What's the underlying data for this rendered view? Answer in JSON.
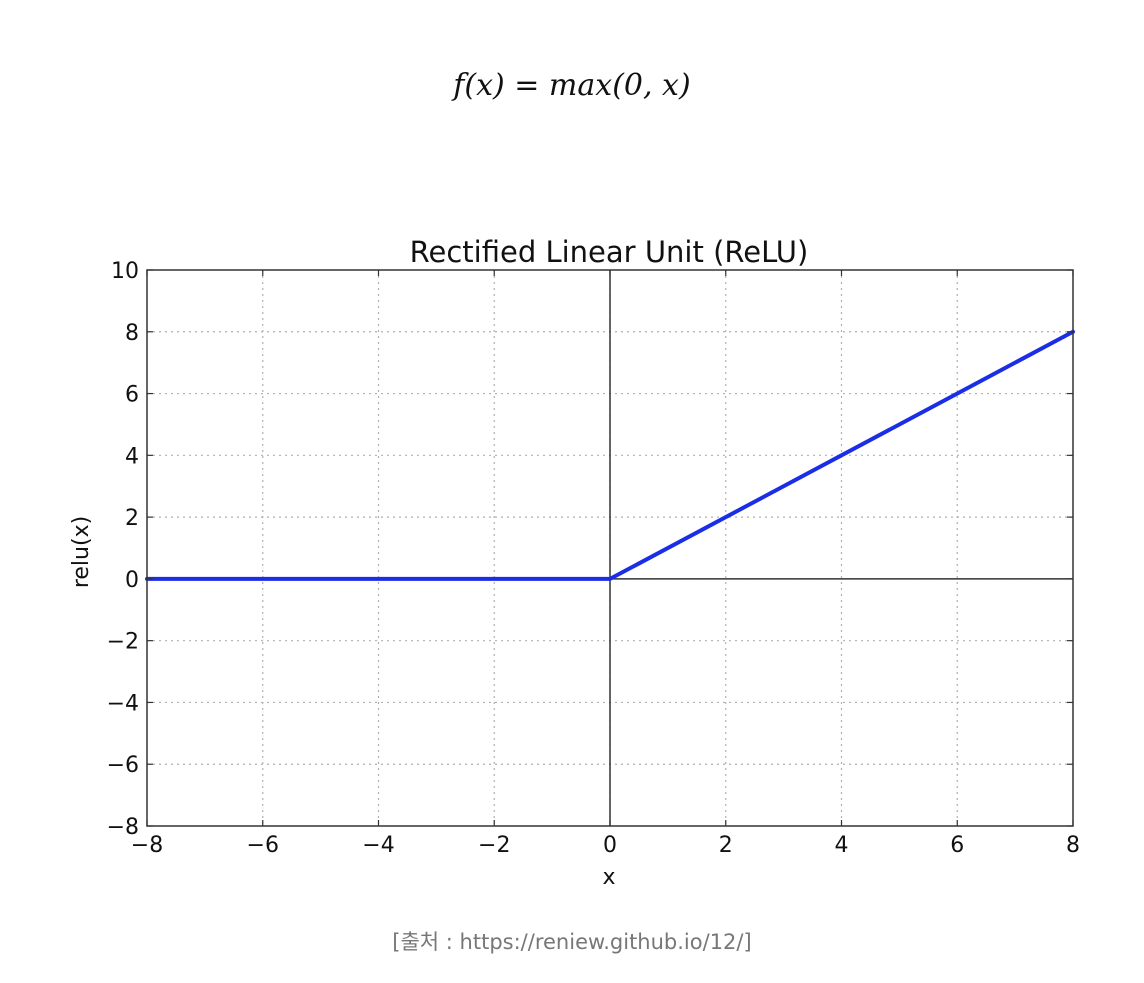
{
  "formula": "f(x) = max(0, x)",
  "caption": "[출처 : https://reniew.github.io/12/]",
  "colors": {
    "line": "#1a2ee6",
    "axes": "#333333",
    "grid": "#b0b0b0"
  },
  "chart_data": {
    "type": "line",
    "title": "Rectified Linear Unit (ReLU)",
    "xlabel": "x",
    "ylabel": "relu(x)",
    "xlim": [
      -8,
      8
    ],
    "ylim": [
      -8,
      10
    ],
    "xticks": [
      -8,
      -6,
      -4,
      -2,
      0,
      2,
      4,
      6,
      8
    ],
    "yticks": [
      -8,
      -6,
      -4,
      -2,
      0,
      2,
      4,
      6,
      8,
      10
    ],
    "xtick_labels": [
      "−8",
      "−6",
      "−4",
      "−2",
      "0",
      "2",
      "4",
      "6",
      "8"
    ],
    "ytick_labels": [
      "−8",
      "−6",
      "−4",
      "−2",
      "0",
      "2",
      "4",
      "6",
      "8",
      "10"
    ],
    "grid": true,
    "series": [
      {
        "x": [
          -8,
          0,
          8
        ],
        "y": [
          0,
          0,
          8
        ]
      }
    ]
  }
}
